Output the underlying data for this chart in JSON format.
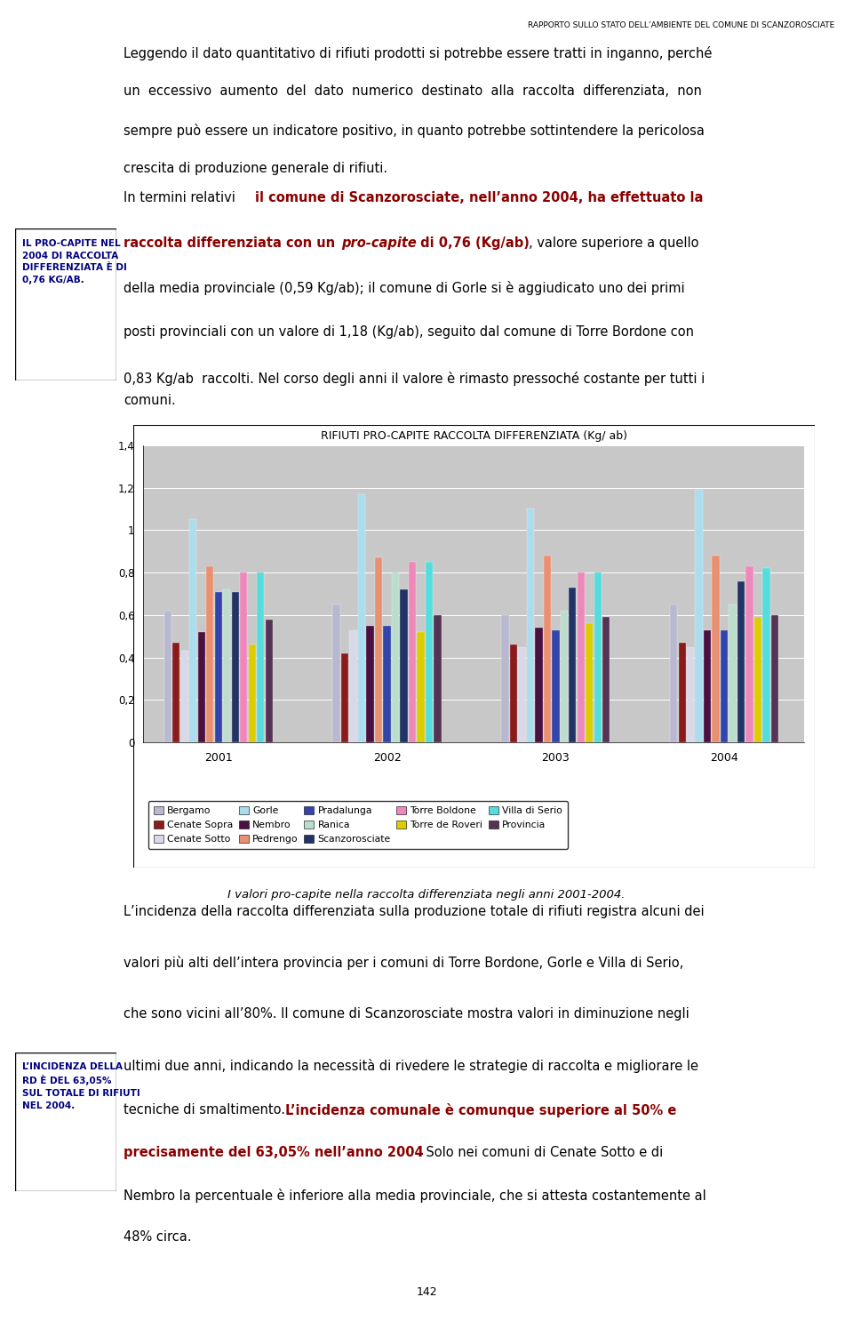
{
  "title": "RIFIUTI PRO-CAPITE RACCOLTA DIFFERENZIATA (Kg/ ab)",
  "years": [
    "2001",
    "2002",
    "2003",
    "2004"
  ],
  "series": [
    {
      "label": "Bergamo",
      "color": "#B8B8D0",
      "values": [
        0.62,
        0.65,
        0.6,
        0.65
      ]
    },
    {
      "label": "Cenate Sopra",
      "color": "#8B1A1A",
      "values": [
        0.47,
        0.42,
        0.46,
        0.47
      ]
    },
    {
      "label": "Cenate Sotto",
      "color": "#D8D8E8",
      "values": [
        0.43,
        0.53,
        0.45,
        0.45
      ]
    },
    {
      "label": "Gorle",
      "color": "#AADDEE",
      "values": [
        1.05,
        1.17,
        1.1,
        1.19
      ]
    },
    {
      "label": "Nembro",
      "color": "#4A1040",
      "values": [
        0.52,
        0.55,
        0.54,
        0.53
      ]
    },
    {
      "label": "Pedrengo",
      "color": "#E89070",
      "values": [
        0.83,
        0.87,
        0.88,
        0.88
      ]
    },
    {
      "label": "Pradalunga",
      "color": "#3344AA",
      "values": [
        0.71,
        0.55,
        0.53,
        0.53
      ]
    },
    {
      "label": "Ranica",
      "color": "#BBDDCC",
      "values": [
        0.72,
        0.8,
        0.62,
        0.65
      ]
    },
    {
      "label": "Scanzorosciate",
      "color": "#223366",
      "values": [
        0.71,
        0.72,
        0.73,
        0.76
      ]
    },
    {
      "label": "Torre Boldone",
      "color": "#EE88BB",
      "values": [
        0.8,
        0.85,
        0.8,
        0.83
      ]
    },
    {
      "label": "Torre de Roveri",
      "color": "#DDCC00",
      "values": [
        0.46,
        0.52,
        0.56,
        0.59
      ]
    },
    {
      "label": "Villa di Serio",
      "color": "#55DDDD",
      "values": [
        0.8,
        0.85,
        0.8,
        0.82
      ]
    },
    {
      "label": "Provincia",
      "color": "#553355",
      "values": [
        0.58,
        0.6,
        0.59,
        0.6
      ]
    }
  ],
  "ytick_labels": [
    "0",
    "0,2",
    "0,4",
    "0,6",
    "0,8",
    "1",
    "1,2",
    "1,4"
  ],
  "ytick_values": [
    0.0,
    0.2,
    0.4,
    0.6,
    0.8,
    1.0,
    1.2,
    1.4
  ],
  "chart_bg": "#C8C8C8",
  "caption": "I valori pro-capite nella raccolta differenziata negli anni 2001-2004.",
  "page_number": "142",
  "header": "RAPPORTO SULLO STATO DELL’AMBIENTE DEL COMUNE DI SCANZOROSCIATE",
  "sidebar1_text": "IL PRO-CAPITE NEL\n2004 DI RACCOLTA\nDIFFERENZIATA È DI\n0,76 KG/AB.",
  "sidebar2_text": "L’INCIDENZA DELLA\nRD È DEL 63,05%\nSUL TOTALE DI RIFIUTI\nNEL 2004.",
  "dark_red": "#8B0000",
  "text_color": "#000000"
}
